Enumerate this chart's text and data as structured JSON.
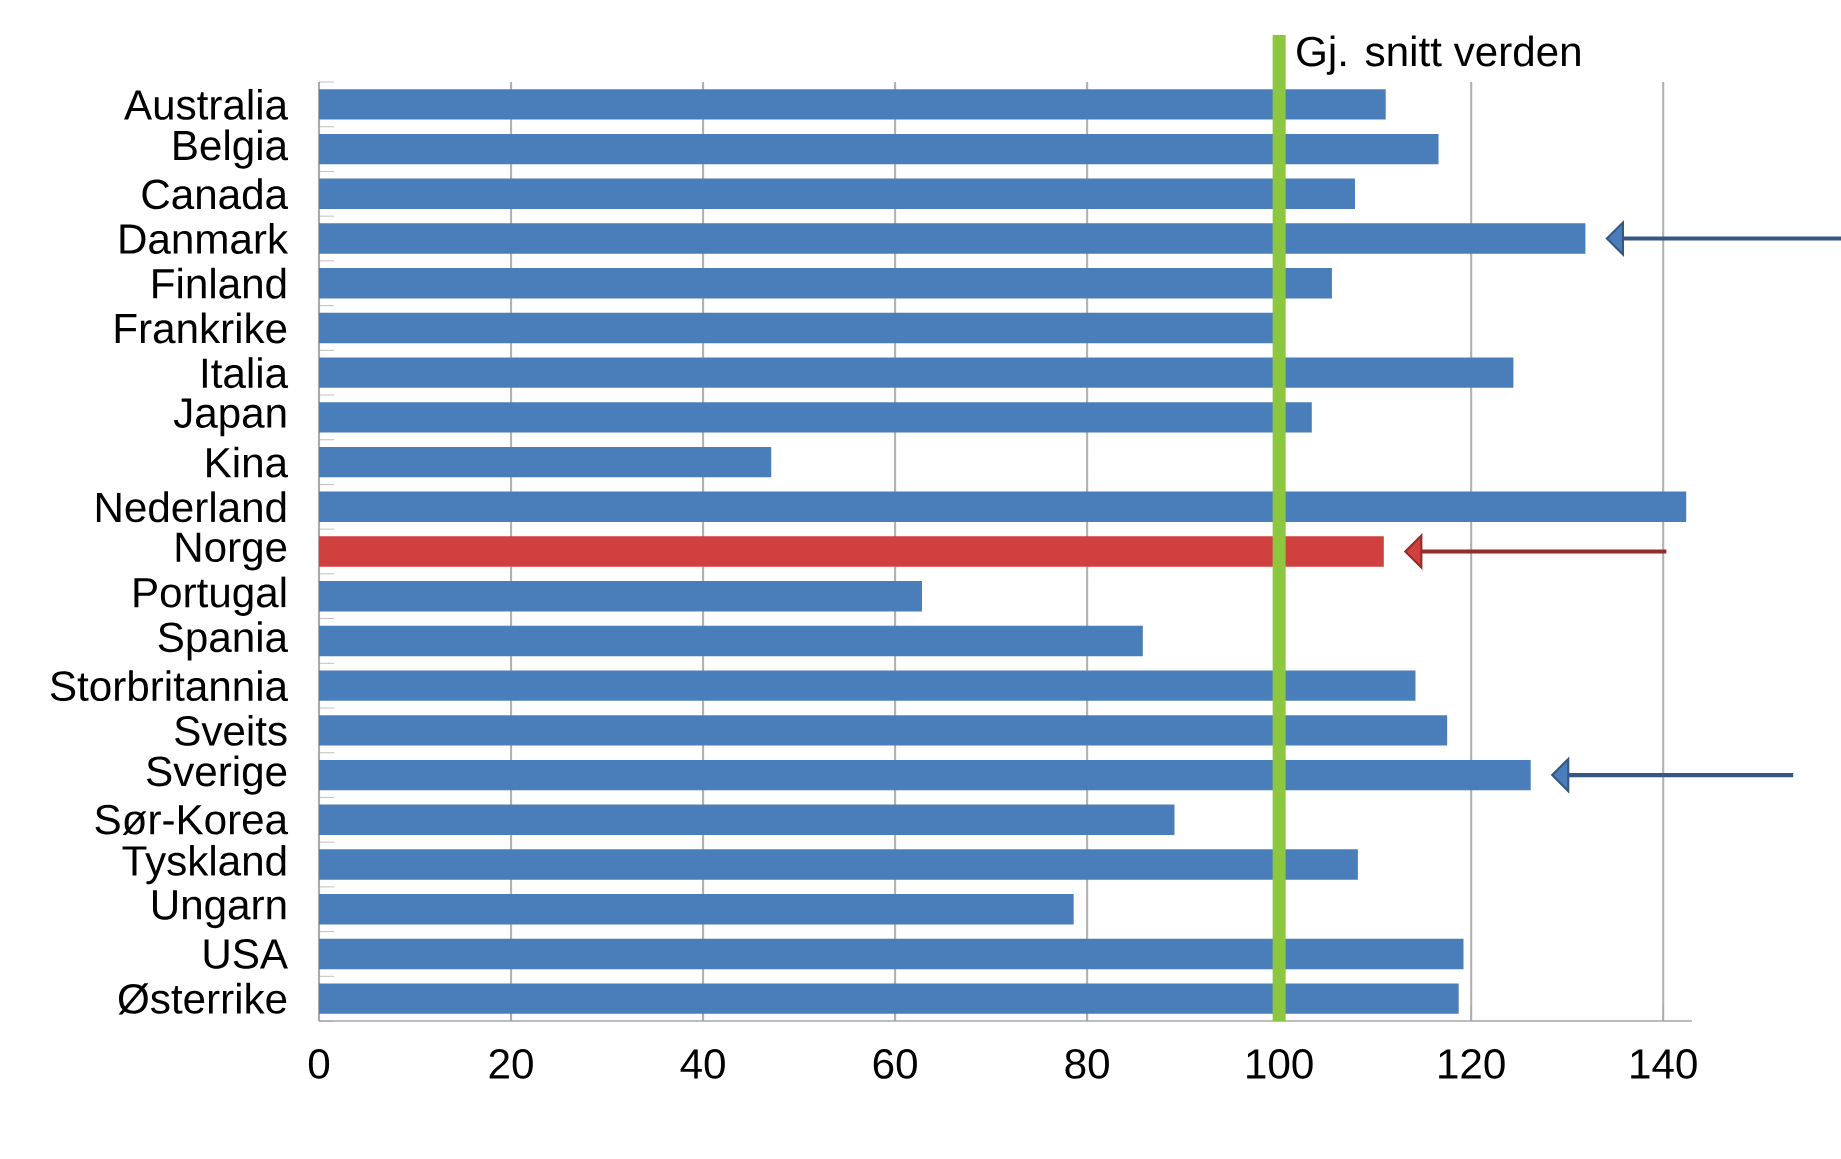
{
  "chart_data": {
    "type": "bar",
    "orientation": "horizontal",
    "categories": [
      "Australia",
      "Belgia",
      "Canada",
      "Danmark",
      "Finland",
      "Frankrike",
      "Italia",
      "Japan",
      "Kina",
      "Nederland",
      "Norge",
      "Portugal",
      "Spania",
      "Storbritannia",
      "Sveits",
      "Sverige",
      "Sør-Korea",
      "Tyskland",
      "Ungarn",
      "USA",
      "Østerrike"
    ],
    "values": [
      111.1,
      116.6,
      107.9,
      131.9,
      105.5,
      99.4,
      124.4,
      103.4,
      47.1,
      142.4,
      110.9,
      62.8,
      85.8,
      114.2,
      117.5,
      126.2,
      89.1,
      108.2,
      78.6,
      119.2,
      118.7
    ],
    "colors": [
      "#4a7ebb",
      "#4a7ebb",
      "#4a7ebb",
      "#4a7ebb",
      "#4a7ebb",
      "#4a7ebb",
      "#4a7ebb",
      "#4a7ebb",
      "#4a7ebb",
      "#4a7ebb",
      "#d0403f",
      "#4a7ebb",
      "#4a7ebb",
      "#4a7ebb",
      "#4a7ebb",
      "#4a7ebb",
      "#4a7ebb",
      "#4a7ebb",
      "#4a7ebb",
      "#4a7ebb",
      "#4a7ebb"
    ],
    "xlim": [
      0,
      143
    ],
    "xticks": [
      0,
      20,
      40,
      60,
      80,
      100,
      120,
      140
    ],
    "grid": "x",
    "ref_lines": [
      {
        "axis": "x",
        "value": 100,
        "label": "Gj. snitt verden",
        "color": "#8dc63f"
      }
    ]
  }
}
